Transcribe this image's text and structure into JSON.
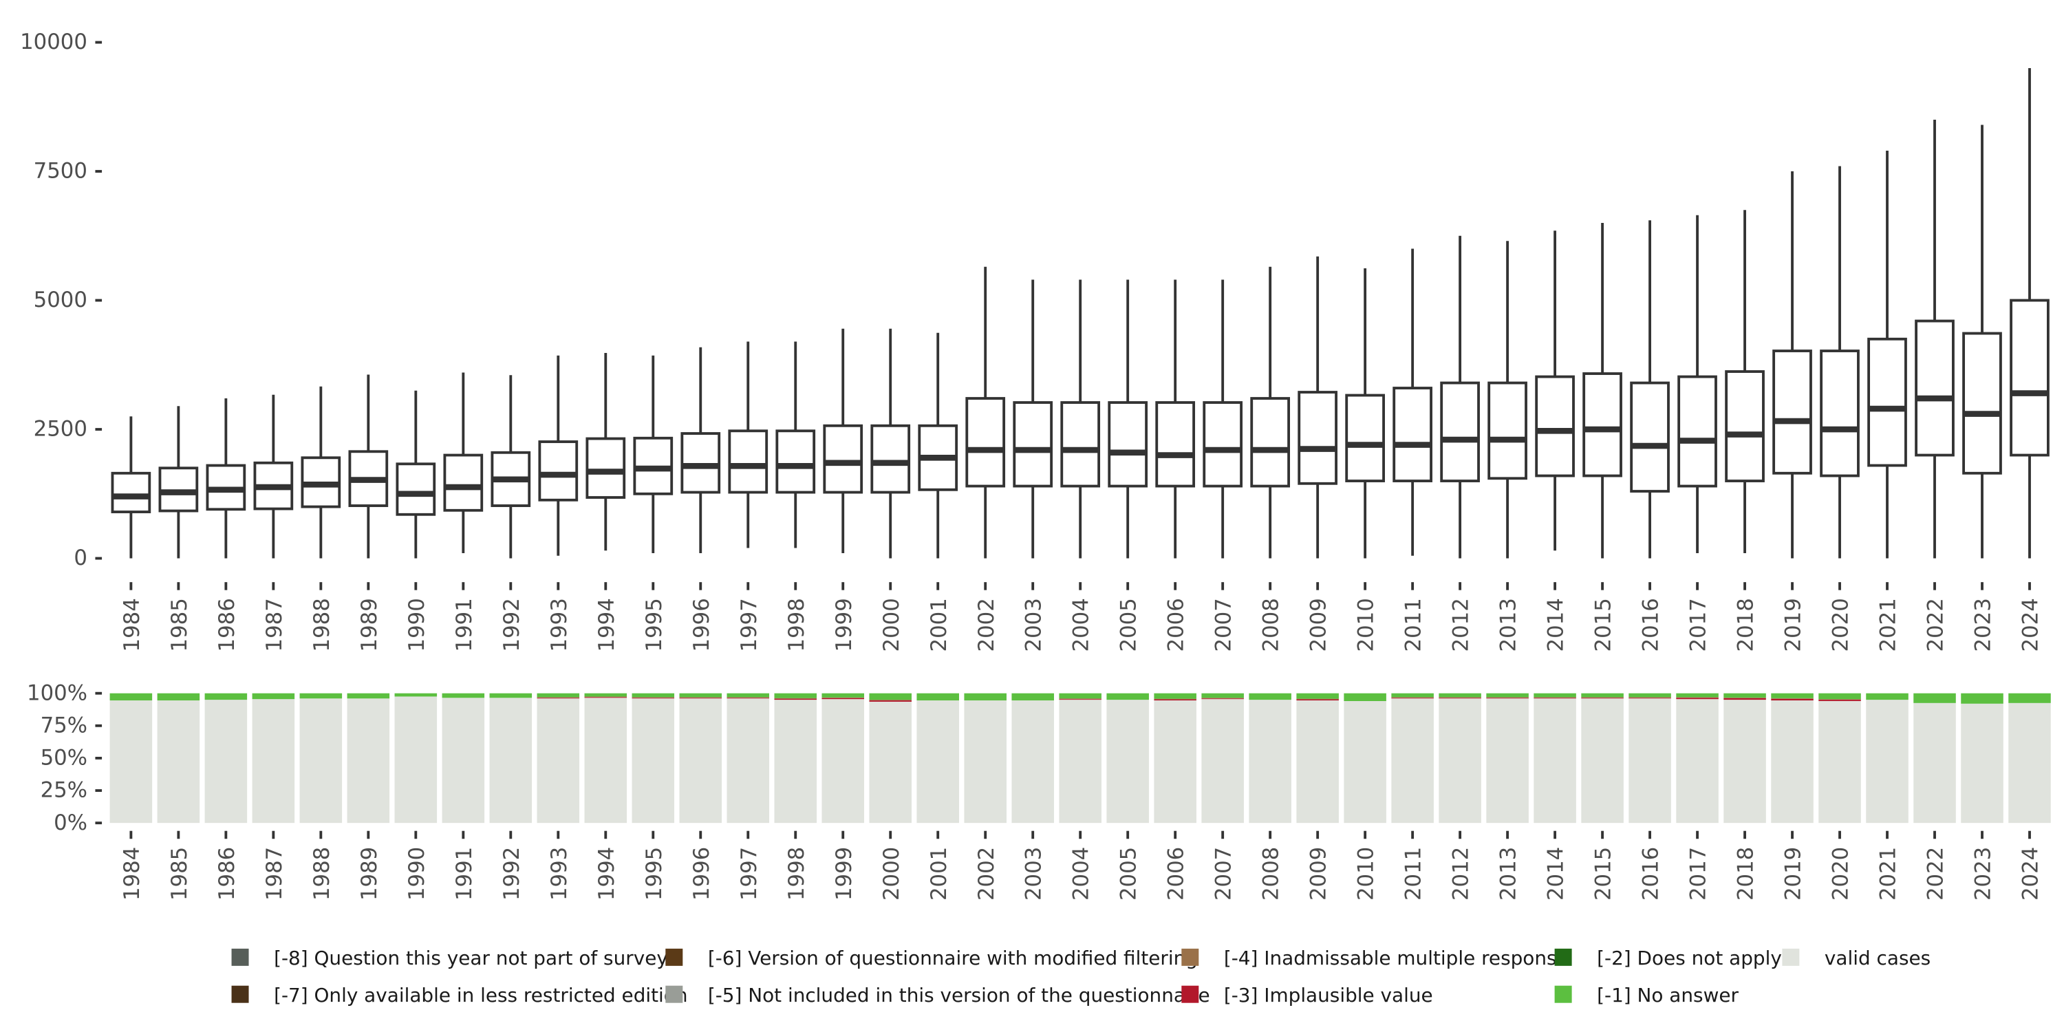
{
  "chart_data": [
    {
      "type": "boxplot",
      "title": "",
      "xlabel": "",
      "ylabel": "",
      "ylim": [
        0,
        10000
      ],
      "y_ticks": [
        "0",
        "2500",
        "5000",
        "7500",
        "10000"
      ],
      "y_tick_values": [
        0,
        2500,
        5000,
        7500,
        10000
      ],
      "categories": [
        "1984",
        "1985",
        "1986",
        "1987",
        "1988",
        "1989",
        "1990",
        "1991",
        "1992",
        "1993",
        "1994",
        "1995",
        "1996",
        "1997",
        "1998",
        "1999",
        "2000",
        "2001",
        "2002",
        "2003",
        "2004",
        "2005",
        "2006",
        "2007",
        "2008",
        "2009",
        "2010",
        "2011",
        "2012",
        "2013",
        "2014",
        "2015",
        "2016",
        "2017",
        "2018",
        "2019",
        "2020",
        "2021",
        "2022",
        "2023",
        "2024"
      ],
      "boxes": [
        [
          0,
          900,
          1200,
          1650,
          2750
        ],
        [
          0,
          920,
          1280,
          1750,
          2950
        ],
        [
          0,
          950,
          1330,
          1800,
          3100
        ],
        [
          0,
          960,
          1380,
          1850,
          3170
        ],
        [
          0,
          1000,
          1430,
          1950,
          3330
        ],
        [
          0,
          1020,
          1520,
          2070,
          3560
        ],
        [
          0,
          850,
          1250,
          1830,
          3250
        ],
        [
          100,
          930,
          1380,
          2000,
          3600
        ],
        [
          0,
          1020,
          1530,
          2050,
          3550
        ],
        [
          50,
          1130,
          1620,
          2260,
          3930
        ],
        [
          150,
          1180,
          1680,
          2320,
          3980
        ],
        [
          100,
          1250,
          1740,
          2330,
          3930
        ],
        [
          100,
          1280,
          1790,
          2420,
          4090
        ],
        [
          200,
          1280,
          1790,
          2470,
          4200
        ],
        [
          200,
          1280,
          1790,
          2470,
          4200
        ],
        [
          100,
          1280,
          1850,
          2570,
          4450
        ],
        [
          0,
          1280,
          1850,
          2570,
          4450
        ],
        [
          0,
          1330,
          1950,
          2570,
          4370
        ],
        [
          0,
          1400,
          2100,
          3100,
          5650
        ],
        [
          0,
          1400,
          2100,
          3020,
          5400
        ],
        [
          0,
          1400,
          2100,
          3020,
          5400
        ],
        [
          0,
          1400,
          2050,
          3020,
          5400
        ],
        [
          0,
          1400,
          2000,
          3020,
          5400
        ],
        [
          0,
          1400,
          2100,
          3020,
          5400
        ],
        [
          0,
          1400,
          2100,
          3100,
          5650
        ],
        [
          0,
          1450,
          2120,
          3220,
          5850
        ],
        [
          0,
          1500,
          2200,
          3160,
          5620
        ],
        [
          50,
          1500,
          2200,
          3300,
          6000
        ],
        [
          0,
          1500,
          2300,
          3400,
          6250
        ],
        [
          0,
          1550,
          2300,
          3400,
          6150
        ],
        [
          150,
          1600,
          2470,
          3520,
          6350
        ],
        [
          0,
          1600,
          2500,
          3580,
          6500
        ],
        [
          0,
          1300,
          2180,
          3400,
          6550
        ],
        [
          100,
          1400,
          2280,
          3520,
          6650
        ],
        [
          100,
          1500,
          2400,
          3620,
          6750
        ],
        [
          0,
          1650,
          2660,
          4020,
          7500
        ],
        [
          0,
          1600,
          2500,
          4020,
          7600
        ],
        [
          0,
          1800,
          2900,
          4250,
          7900
        ],
        [
          0,
          2000,
          3100,
          4600,
          8500
        ],
        [
          0,
          1650,
          2800,
          4360,
          8400
        ],
        [
          0,
          2000,
          3200,
          5000,
          9500
        ]
      ]
    },
    {
      "type": "bar",
      "stacked": true,
      "ylim": [
        0,
        100
      ],
      "y_ticks": [
        "0%",
        "25%",
        "50%",
        "75%",
        "100%"
      ],
      "y_tick_values": [
        0,
        25,
        50,
        75,
        100
      ],
      "categories": [
        "1984",
        "1985",
        "1986",
        "1987",
        "1988",
        "1989",
        "1990",
        "1991",
        "1992",
        "1993",
        "1994",
        "1995",
        "1996",
        "1997",
        "1998",
        "1999",
        "2000",
        "2001",
        "2002",
        "2003",
        "2004",
        "2005",
        "2006",
        "2007",
        "2008",
        "2009",
        "2010",
        "2011",
        "2012",
        "2013",
        "2014",
        "2015",
        "2016",
        "2017",
        "2018",
        "2019",
        "2020",
        "2021",
        "2022",
        "2023",
        "2024"
      ],
      "series": [
        {
          "name": "valid cases",
          "color": "#e0e3dd",
          "values": [
            94.5,
            94.5,
            95,
            95.5,
            96,
            96,
            97.5,
            96.5,
            96.5,
            96,
            96.5,
            96,
            96,
            96,
            95,
            95.5,
            93.5,
            94.5,
            94.5,
            94.5,
            95,
            95,
            94.5,
            95.5,
            95,
            94.5,
            94,
            96,
            96,
            96,
            96,
            96,
            96,
            95.5,
            95,
            94.5,
            94,
            95,
            92.5,
            92,
            92.5
          ]
        },
        {
          "name": "[-3] Implausible value",
          "color": "#b2182b",
          "values": [
            0,
            0,
            0,
            0,
            0,
            0,
            0,
            0,
            0,
            0.5,
            0.5,
            0.5,
            0.5,
            0.5,
            0.8,
            0.8,
            1,
            0,
            0,
            0,
            0.5,
            0,
            0.8,
            0.5,
            0,
            0.8,
            0,
            0.5,
            0.5,
            0.5,
            0.5,
            0.5,
            0.5,
            1,
            1.2,
            1.2,
            1,
            0,
            0,
            0,
            0
          ]
        },
        {
          "name": "[-4] Inadmissable multiple response",
          "color": "#9a7149",
          "values": [
            0,
            0,
            0,
            0,
            0,
            0,
            0,
            0,
            0,
            0.5,
            0.5,
            0.5,
            0.5,
            0.5,
            0.5,
            0.5,
            0.5,
            0,
            0,
            0,
            0.5,
            0,
            0.5,
            0.5,
            0,
            0.5,
            0,
            0.5,
            0.5,
            0.5,
            0.5,
            0.5,
            0.5,
            0.5,
            0.5,
            0.5,
            0.5,
            0,
            0,
            0,
            0
          ]
        },
        {
          "name": "[-1] No answer",
          "color": "#5cbf40",
          "values": [
            5.5,
            5.5,
            5,
            4.5,
            4,
            4,
            2.5,
            3.5,
            3.5,
            3,
            2.5,
            3,
            3,
            3,
            3.7,
            3.2,
            5,
            5.5,
            5.5,
            5.5,
            4,
            5,
            4.2,
            3.5,
            5,
            4.2,
            6,
            3,
            3,
            3,
            3,
            3,
            3,
            3,
            3.3,
            3.8,
            4.5,
            5,
            7.5,
            8,
            7.5
          ]
        }
      ]
    }
  ],
  "legend": [
    {
      "label": "[-8] Question this year not part of survey",
      "color": "#575e59"
    },
    {
      "label": "[-7] Only available in less restricted edition",
      "color": "#4a3118"
    },
    {
      "label": "[-6] Version of questionnaire with modified filtering",
      "color": "#5b3a17"
    },
    {
      "label": "[-5] Not included in this version of the questionnaire",
      "color": "#999d97"
    },
    {
      "label": "[-4] Inadmissable multiple response",
      "color": "#9a7149"
    },
    {
      "label": "[-3] Implausible value",
      "color": "#b2182b"
    },
    {
      "label": "[-2] Does not apply",
      "color": "#226b16"
    },
    {
      "label": "[-1] No answer",
      "color": "#5cbf40"
    },
    {
      "label": "valid cases",
      "color": "#e0e3dd"
    }
  ]
}
